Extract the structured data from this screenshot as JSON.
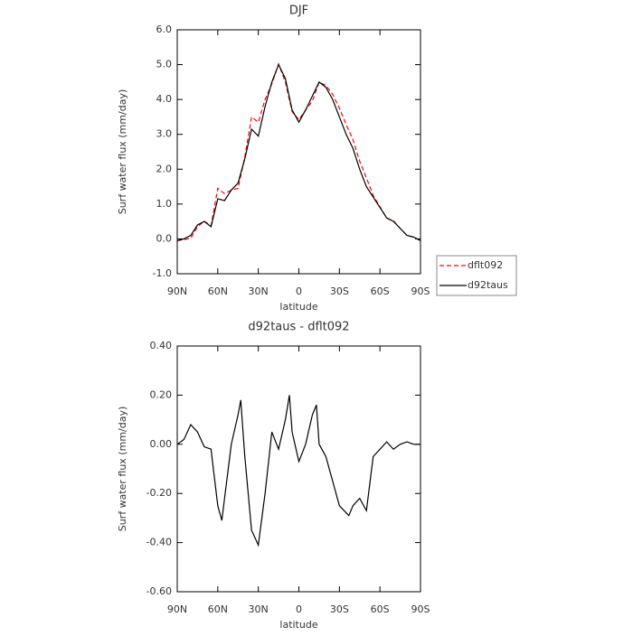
{
  "chart_data": [
    {
      "type": "line",
      "title": "DJF",
      "ylabel": "Surf water flux (mm/day)",
      "xlabel": "latitude",
      "x": [
        90,
        85,
        80,
        75,
        70,
        65,
        60,
        55,
        50,
        45,
        40,
        35,
        30,
        25,
        20,
        15,
        10,
        5,
        0,
        -5,
        -10,
        -15,
        -20,
        -25,
        -30,
        -35,
        -40,
        -45,
        -50,
        -55,
        -60,
        -65,
        -70,
        -75,
        -80,
        -85,
        -90
      ],
      "xlim": [
        90,
        -90
      ],
      "xticks": [
        {
          "value": 90,
          "label": "90N"
        },
        {
          "value": 60,
          "label": "60N"
        },
        {
          "value": 30,
          "label": "30N"
        },
        0,
        {
          "value": -30,
          "label": "30S"
        },
        {
          "value": -60,
          "label": "60S"
        },
        {
          "value": -90,
          "label": "90S"
        }
      ],
      "ylim": [
        -1,
        6
      ],
      "yticks": [
        {
          "value": -1,
          "label": "-1.0"
        },
        {
          "value": 0,
          "label": "0.0"
        },
        {
          "value": 1,
          "label": "1.0"
        },
        {
          "value": 2,
          "label": "2.0"
        },
        {
          "value": 3,
          "label": "3.0"
        },
        {
          "value": 4,
          "label": "4.0"
        },
        {
          "value": 5,
          "label": "5.0"
        },
        {
          "value": 6,
          "label": "6.0"
        }
      ],
      "legend": "right",
      "series": [
        {
          "name": "dflt092",
          "color": "#ff0000",
          "line_style": "dashed",
          "values": [
            -0.05,
            -0.02,
            0.02,
            0.35,
            0.51,
            0.37,
            1.45,
            1.3,
            1.4,
            1.45,
            2.35,
            3.5,
            3.35,
            4.0,
            4.45,
            5.02,
            4.5,
            3.65,
            3.42,
            3.7,
            3.95,
            4.5,
            4.4,
            4.15,
            3.75,
            3.28,
            2.85,
            2.23,
            1.75,
            1.25,
            0.92,
            0.6,
            0.52,
            0.3,
            0.1,
            0.05,
            -0.05
          ]
        },
        {
          "name": "d92taus",
          "color": "#000000",
          "line_style": "solid",
          "values": [
            -0.05,
            0.0,
            0.1,
            0.4,
            0.5,
            0.35,
            1.15,
            1.1,
            1.4,
            1.6,
            2.3,
            3.15,
            2.95,
            3.8,
            4.5,
            5.0,
            4.6,
            3.7,
            3.35,
            3.7,
            4.1,
            4.5,
            4.35,
            4.0,
            3.5,
            3.0,
            2.6,
            2.0,
            1.5,
            1.2,
            0.9,
            0.6,
            0.5,
            0.3,
            0.1,
            0.05,
            -0.05
          ]
        }
      ]
    },
    {
      "type": "line",
      "title": "d92taus - dflt092",
      "ylabel": "Surf water flux (mm/day)",
      "xlabel": "latitude",
      "x": [
        90,
        85,
        80,
        75,
        70,
        65,
        60,
        57,
        55,
        50,
        45,
        43,
        40,
        35,
        30,
        25,
        20,
        15,
        10,
        7,
        5,
        0,
        -5,
        -10,
        -13,
        -15,
        -20,
        -25,
        -30,
        -37,
        -40,
        -45,
        -50,
        -55,
        -60,
        -65,
        -70,
        -75,
        -80,
        -85,
        -90
      ],
      "xlim": [
        90,
        -90
      ],
      "xticks": [
        {
          "value": 90,
          "label": "90N"
        },
        {
          "value": 60,
          "label": "60N"
        },
        {
          "value": 30,
          "label": "30N"
        },
        0,
        {
          "value": -30,
          "label": "30S"
        },
        {
          "value": -60,
          "label": "60S"
        },
        {
          "value": -90,
          "label": "90S"
        }
      ],
      "ylim": [
        -0.6,
        0.4
      ],
      "yticks": [
        {
          "value": -0.6,
          "label": "-0.60"
        },
        {
          "value": -0.4,
          "label": "-0.40"
        },
        {
          "value": -0.2,
          "label": "-0.20"
        },
        {
          "value": 0,
          "label": "0.00"
        },
        {
          "value": 0.2,
          "label": "0.20"
        },
        {
          "value": 0.4,
          "label": "0.40"
        }
      ],
      "series": [
        {
          "color": "#000000",
          "line_style": "solid",
          "values": [
            0.0,
            0.02,
            0.08,
            0.05,
            -0.01,
            -0.02,
            -0.25,
            -0.31,
            -0.22,
            0.0,
            0.12,
            0.18,
            -0.05,
            -0.35,
            -0.41,
            -0.2,
            0.05,
            -0.02,
            0.1,
            0.2,
            0.05,
            -0.07,
            0.0,
            0.12,
            0.16,
            0.0,
            -0.05,
            -0.15,
            -0.25,
            -0.29,
            -0.25,
            -0.22,
            -0.27,
            -0.05,
            -0.02,
            0.01,
            -0.02,
            0.0,
            0.01,
            0.0,
            0.0
          ]
        }
      ]
    }
  ]
}
